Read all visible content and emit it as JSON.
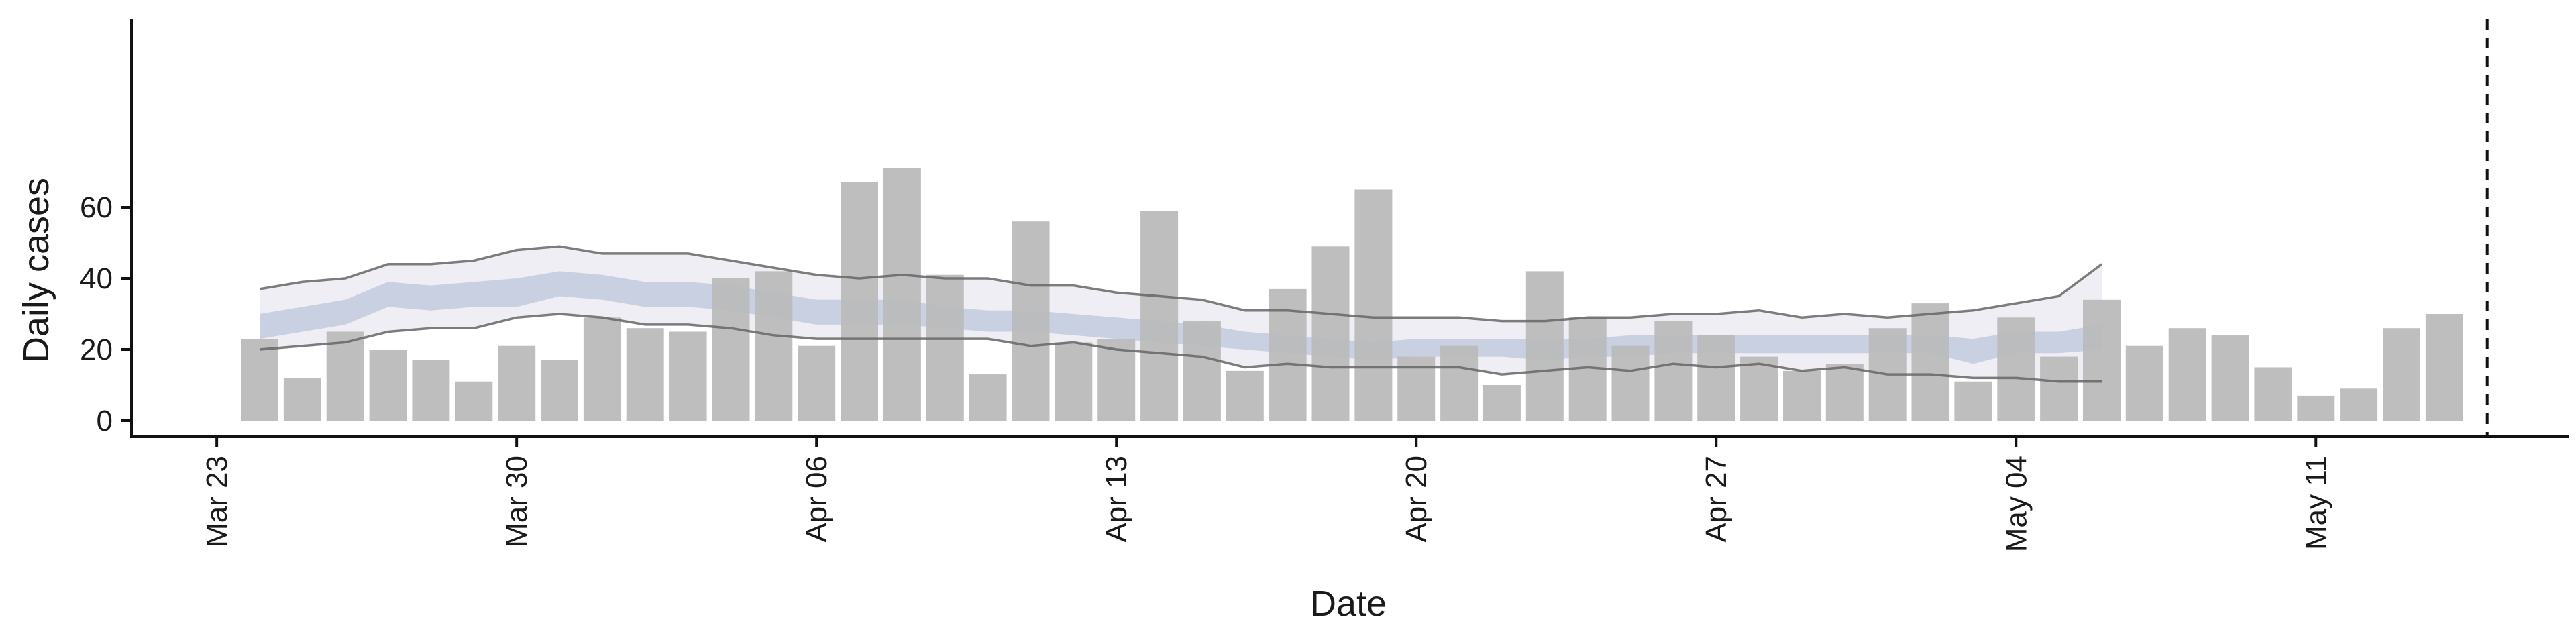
{
  "chart_data": {
    "type": "bar",
    "xlabel": "Date",
    "ylabel": "Daily cases",
    "ylim": [
      -3.5,
      78
    ],
    "yticks": [
      0,
      20,
      40,
      60
    ],
    "x_start": "Mar 24",
    "x_ticks": [
      {
        "label": "Mar 23",
        "day": -1
      },
      {
        "label": "Mar 30",
        "day": 6
      },
      {
        "label": "Apr 06",
        "day": 13
      },
      {
        "label": "Apr 13",
        "day": 20
      },
      {
        "label": "Apr 20",
        "day": 27
      },
      {
        "label": "Apr 27",
        "day": 34
      },
      {
        "label": "May 04",
        "day": 41
      },
      {
        "label": "May 11",
        "day": 48
      }
    ],
    "bar_values": [
      23,
      12,
      25,
      20,
      17,
      11,
      21,
      17,
      29,
      26,
      25,
      40,
      42,
      21,
      67,
      71,
      41,
      13,
      56,
      22,
      23,
      59,
      28,
      14,
      37,
      49,
      65,
      18,
      21,
      10,
      42,
      29,
      21,
      28,
      24,
      18,
      14,
      16,
      26,
      33,
      11,
      29,
      18,
      34,
      21,
      26,
      24,
      15,
      7,
      9,
      26,
      30
    ],
    "estimate_band": {
      "outer_upper": [
        37,
        39,
        40,
        44,
        44,
        45,
        48,
        49,
        47,
        47,
        47,
        45,
        43,
        41,
        40,
        41,
        40,
        40,
        38,
        38,
        36,
        35,
        34,
        31,
        31,
        30,
        29,
        29,
        29,
        28,
        28,
        29,
        29,
        30,
        30,
        31,
        29,
        30,
        29,
        30,
        31,
        33,
        35,
        44
      ],
      "inner_upper": [
        30,
        32,
        34,
        39,
        38,
        39,
        40,
        42,
        41,
        39,
        39,
        38,
        36,
        34,
        34,
        34,
        32,
        31,
        31,
        30,
        29,
        28,
        27,
        25,
        24,
        23,
        22,
        23,
        23,
        23,
        23,
        23,
        24,
        24,
        24,
        24,
        24,
        24,
        24,
        24,
        23,
        25,
        25,
        27
      ],
      "inner_lower": [
        23,
        25,
        27,
        32,
        31,
        32,
        32,
        35,
        34,
        32,
        32,
        31,
        29,
        27,
        27,
        27,
        26,
        25,
        25,
        24,
        23,
        22,
        21,
        20,
        19,
        18,
        17,
        18,
        18,
        18,
        17,
        18,
        18,
        19,
        19,
        19,
        19,
        19,
        19,
        19,
        16,
        19,
        19,
        20
      ],
      "outer_lower": [
        20,
        21,
        22,
        25,
        26,
        26,
        29,
        30,
        29,
        27,
        27,
        26,
        24,
        23,
        23,
        23,
        23,
        23,
        21,
        22,
        20,
        19,
        18,
        15,
        16,
        15,
        15,
        15,
        15,
        13,
        14,
        15,
        14,
        16,
        15,
        16,
        14,
        15,
        13,
        13,
        12,
        12,
        11,
        11
      ]
    },
    "vline_day": 52,
    "colors": {
      "bar": "#bbbbbb",
      "outer_band": "#ebebf2",
      "inner_band": "#c6cddf",
      "band_line": "#666666",
      "axis": "#111111",
      "vline": "#111111"
    },
    "grid": false,
    "legend": "none"
  }
}
